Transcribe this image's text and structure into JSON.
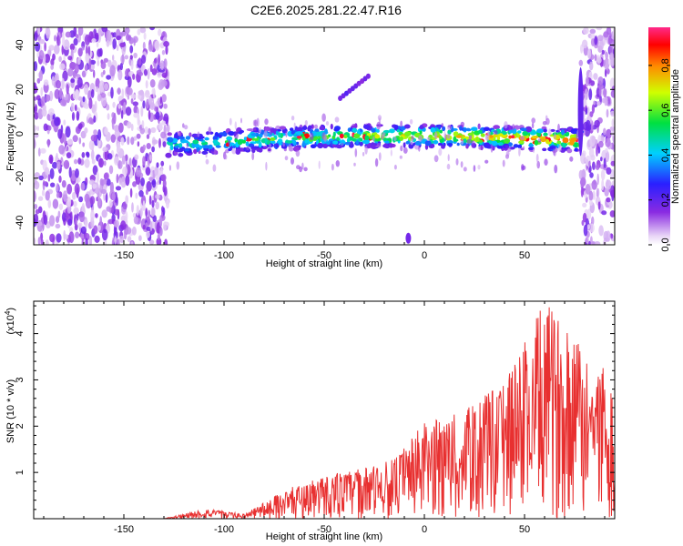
{
  "title": "C2E6.2025.281.22.47.R16",
  "chart_data": [
    {
      "type": "heatmap",
      "name": "spectrogram",
      "xlabel": "Height of straight line (km)",
      "ylabel": "Frequency (Hz)",
      "xlim": [
        -195,
        95
      ],
      "ylim": [
        -50,
        48
      ],
      "xticks": [
        -150,
        -100,
        -50,
        0,
        50
      ],
      "yticks": [
        -40,
        -20,
        0,
        20,
        40
      ],
      "colorbar": {
        "label": "Normalized spectral amplitude",
        "range": [
          0,
          0.97
        ],
        "ticks": [
          0.0,
          0.2,
          0.4,
          0.6,
          0.8
        ]
      },
      "features": [
        {
          "name": "noise-region-left",
          "x_range": [
            -195,
            -128
          ],
          "freq_range": [
            -50,
            48
          ]
        },
        {
          "name": "signal-band",
          "x_range": [
            -128,
            78
          ],
          "freq_center_start": -5,
          "freq_center_end": -3,
          "peak_amplitude": 0.95
        },
        {
          "name": "noise-region-right",
          "x_range": [
            78,
            95
          ],
          "freq_range": [
            -50,
            48
          ]
        },
        {
          "name": "streak-upper",
          "x_range": [
            -42,
            -28
          ],
          "freq_range": [
            16,
            26
          ]
        },
        {
          "name": "vertical-streak",
          "x": 78,
          "freq_range": [
            -10,
            30
          ]
        }
      ]
    },
    {
      "type": "line",
      "name": "snr",
      "xlabel": "Height of straight line (km)",
      "ylabel": "SNR (10 * v/v)",
      "multiplier_label": "(x10",
      "multiplier_exp": "4",
      "xlim": [
        -195,
        95
      ],
      "ylim": [
        0,
        4.7
      ],
      "xticks": [
        -150,
        -100,
        -50,
        0,
        50
      ],
      "yticks": [
        1,
        2,
        3,
        4
      ],
      "color": "#e83030",
      "envelope": [
        {
          "x": -195,
          "y": 0.0
        },
        {
          "x": -130,
          "y": 0.0
        },
        {
          "x": -110,
          "y": 0.22
        },
        {
          "x": -90,
          "y": 0.1
        },
        {
          "x": -70,
          "y": 0.62
        },
        {
          "x": -50,
          "y": 0.95
        },
        {
          "x": -30,
          "y": 1.1
        },
        {
          "x": -15,
          "y": 1.3
        },
        {
          "x": 0,
          "y": 2.1
        },
        {
          "x": 20,
          "y": 2.35
        },
        {
          "x": 40,
          "y": 3.0
        },
        {
          "x": 60,
          "y": 4.7
        },
        {
          "x": 80,
          "y": 3.8
        },
        {
          "x": 95,
          "y": 3.0
        }
      ]
    }
  ]
}
